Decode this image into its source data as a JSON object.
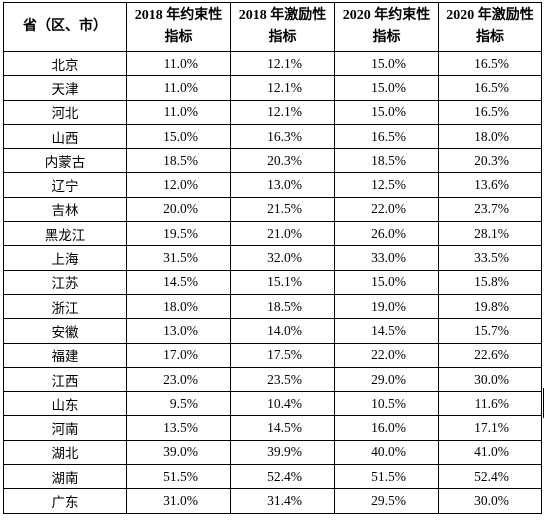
{
  "table": {
    "headers": [
      [
        "省（区、市）"
      ],
      [
        "2018 年约束性",
        "指标"
      ],
      [
        "2018 年激励性",
        "指标"
      ],
      [
        "2020 年约束性",
        "指标"
      ],
      [
        "2020 年激励性",
        "指标"
      ]
    ],
    "rows": [
      [
        "北京",
        "11.0%",
        "12.1%",
        "15.0%",
        "16.5%"
      ],
      [
        "天津",
        "11.0%",
        "12.1%",
        "15.0%",
        "16.5%"
      ],
      [
        "河北",
        "11.0%",
        "12.1%",
        "15.0%",
        "16.5%"
      ],
      [
        "山西",
        "15.0%",
        "16.3%",
        "16.5%",
        "18.0%"
      ],
      [
        "内蒙古",
        "18.5%",
        "20.3%",
        "18.5%",
        "20.3%"
      ],
      [
        "辽宁",
        "12.0%",
        "13.0%",
        "12.5%",
        "13.6%"
      ],
      [
        "吉林",
        "20.0%",
        "21.5%",
        "22.0%",
        "23.7%"
      ],
      [
        "黑龙江",
        "19.5%",
        "21.0%",
        "26.0%",
        "28.1%"
      ],
      [
        "上海",
        "31.5%",
        "32.0%",
        "33.0%",
        "33.5%"
      ],
      [
        "江苏",
        "14.5%",
        "15.1%",
        "15.0%",
        "15.8%"
      ],
      [
        "浙江",
        "18.0%",
        "18.5%",
        "19.0%",
        "19.8%"
      ],
      [
        "安徽",
        "13.0%",
        "14.0%",
        "14.5%",
        "15.7%"
      ],
      [
        "福建",
        "17.0%",
        "17.5%",
        "22.0%",
        "22.6%"
      ],
      [
        "江西",
        "23.0%",
        "23.5%",
        "29.0%",
        "30.0%"
      ],
      [
        "山东",
        "9.5%",
        "10.4%",
        "10.5%",
        "11.6%"
      ],
      [
        "河南",
        "13.5%",
        "14.5%",
        "16.0%",
        "17.1%"
      ],
      [
        "湖北",
        "39.0%",
        "39.9%",
        "40.0%",
        "41.0%"
      ],
      [
        "湖南",
        "51.5%",
        "52.4%",
        "51.5%",
        "52.4%"
      ],
      [
        "广东",
        "31.0%",
        "31.4%",
        "29.5%",
        "30.0%"
      ]
    ]
  }
}
